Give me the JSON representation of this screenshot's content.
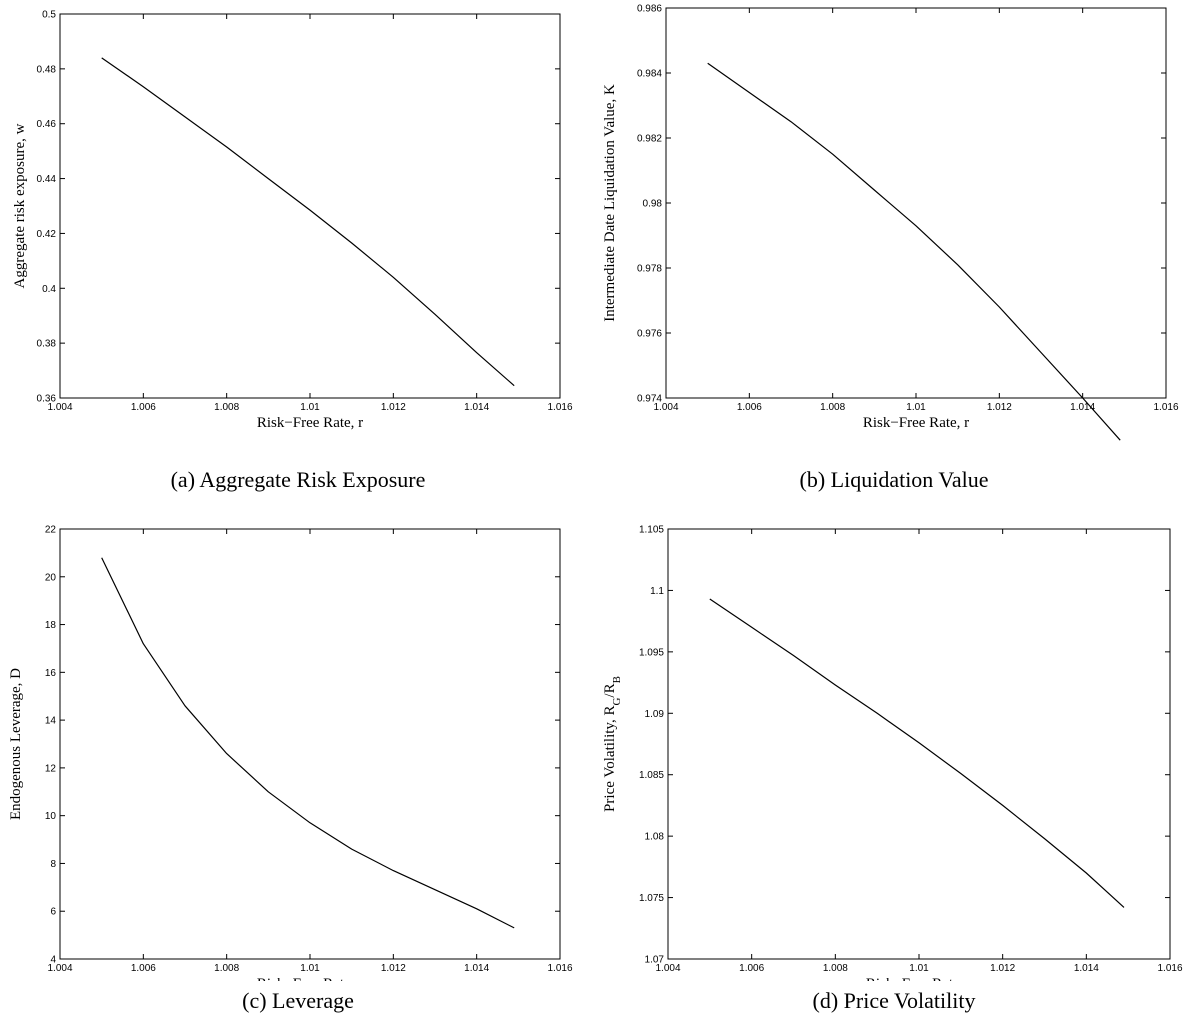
{
  "chart_data": [
    {
      "type": "line",
      "caption": "(a) Aggregate Risk Exposure",
      "xlabel": "Risk−Free Rate, r",
      "ylabel": "Aggregate risk exposure, w",
      "xlim": [
        1.004,
        1.016
      ],
      "ylim": [
        0.36,
        0.5
      ],
      "xticks": [
        "1.004",
        "1.006",
        "1.008",
        "1.01",
        "1.012",
        "1.014",
        "1.016"
      ],
      "yticks": [
        "0.36",
        "0.38",
        "0.4",
        "0.42",
        "0.44",
        "0.46",
        "0.48",
        "0.5"
      ],
      "grid": false,
      "series": [
        {
          "x": [
            1.005,
            1.006,
            1.007,
            1.008,
            1.009,
            1.01,
            1.011,
            1.012,
            1.013,
            1.014,
            1.0149
          ],
          "y": [
            0.484,
            0.4735,
            0.4625,
            0.4515,
            0.44,
            0.4285,
            0.4165,
            0.404,
            0.3905,
            0.3765,
            0.3645
          ]
        }
      ]
    },
    {
      "type": "line",
      "caption": "(b) Liquidation Value",
      "xlabel": "Risk−Free Rate, r",
      "ylabel": "Intermediate Date Liquidation Value, K",
      "xlim": [
        1.004,
        1.016
      ],
      "ylim": [
        0.974,
        0.986
      ],
      "xticks": [
        "1.004",
        "1.006",
        "1.008",
        "1.01",
        "1.012",
        "1.014",
        "1.016"
      ],
      "yticks": [
        "0.974",
        "0.976",
        "0.978",
        "0.98",
        "0.982",
        "0.984",
        "0.986"
      ],
      "grid": false,
      "series": [
        {
          "x": [
            1.005,
            1.006,
            1.007,
            1.008,
            1.009,
            1.01,
            1.011,
            1.012,
            1.013,
            1.014,
            1.0149
          ],
          "y": [
            0.9843,
            0.9834,
            0.9825,
            0.9815,
            0.9804,
            0.9793,
            0.9781,
            0.9768,
            0.9754,
            0.974,
            0.9727
          ]
        }
      ]
    },
    {
      "type": "line",
      "caption": "(c) Leverage",
      "xlabel": "Risk−Free Rate, r",
      "ylabel": "Endogenous Leverage, D",
      "xlim": [
        1.004,
        1.016
      ],
      "ylim": [
        4,
        22
      ],
      "xticks": [
        "1.004",
        "1.006",
        "1.008",
        "1.01",
        "1.012",
        "1.014",
        "1.016"
      ],
      "yticks": [
        "4",
        "6",
        "8",
        "10",
        "12",
        "14",
        "16",
        "18",
        "20",
        "22"
      ],
      "grid": false,
      "series": [
        {
          "x": [
            1.005,
            1.006,
            1.007,
            1.008,
            1.009,
            1.01,
            1.011,
            1.012,
            1.013,
            1.014,
            1.0149
          ],
          "y": [
            20.8,
            17.2,
            14.6,
            12.6,
            11.0,
            9.7,
            8.6,
            7.7,
            6.9,
            6.1,
            5.3
          ]
        }
      ]
    },
    {
      "type": "line",
      "caption": "(d) Price Volatility",
      "xlabel": "Risk−Free Rate, r",
      "ylabel": "Price Volatility, R",
      "ylabel_sub1": "G",
      "ylabel_mid": "/R",
      "ylabel_sub2": "B",
      "xlim": [
        1.004,
        1.016
      ],
      "ylim": [
        1.07,
        1.105
      ],
      "xticks": [
        "1.004",
        "1.006",
        "1.008",
        "1.01",
        "1.012",
        "1.014",
        "1.016"
      ],
      "yticks": [
        "1.07",
        "1.075",
        "1.08",
        "1.085",
        "1.09",
        "1.095",
        "1.1",
        "1.105"
      ],
      "grid": false,
      "series": [
        {
          "x": [
            1.005,
            1.006,
            1.007,
            1.008,
            1.009,
            1.01,
            1.011,
            1.012,
            1.013,
            1.014,
            1.0149
          ],
          "y": [
            1.0993,
            1.097,
            1.0947,
            1.0923,
            1.09,
            1.0876,
            1.0851,
            1.0825,
            1.0798,
            1.077,
            1.0742
          ]
        }
      ]
    }
  ]
}
